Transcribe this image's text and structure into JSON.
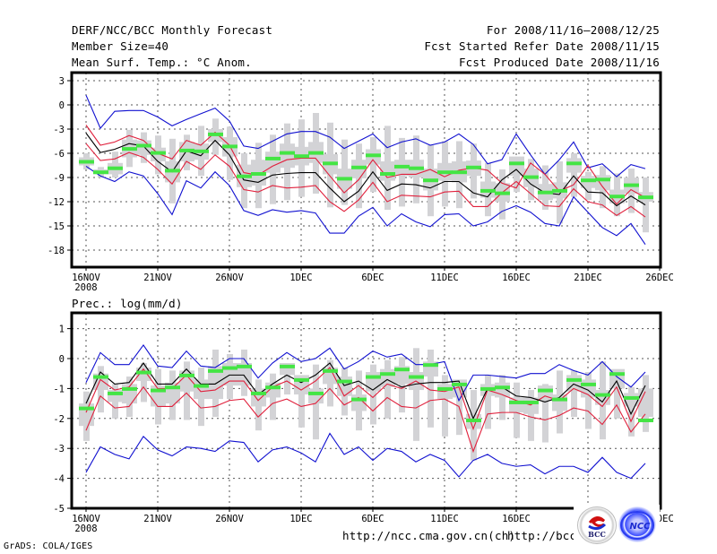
{
  "header": {
    "title": "DERF/NCC/BCC Monthly Forecast",
    "member_size": "Member Size=40",
    "variable": "Mean Surf. Temp.: °C Anom.",
    "period": "For 2008/11/16—2008/12/25",
    "start_date": "Fcst Started Refer Date 2008/11/15",
    "produced_date": "Fcst Produced Date 2008/11/16"
  },
  "footer": {
    "grads": "GrADS: COLA/IGES",
    "url_ncc": "http://ncc.cma.gov.cn(ch)",
    "url_bcc": "http://bcc.c",
    "logos": [
      "BCC",
      "NCC"
    ]
  },
  "colors": {
    "box": "#d3d3d6",
    "median": "#44e544",
    "mean": "#000000",
    "spread": "#e0203c",
    "extreme": "#1010d0",
    "grid": "#555555"
  },
  "chart_data": [
    {
      "type": "line",
      "title": "Mean Surf. Temp.: °C Anom.",
      "xlabel": "",
      "ylabel": "",
      "x_tick_labels": [
        "16NOV",
        "21NOV",
        "26NOV",
        "1DEC",
        "6DEC",
        "11DEC",
        "16DEC",
        "21DEC",
        "26DEC"
      ],
      "x_sub_label": "2008",
      "x_tick_days": [
        0,
        5,
        10,
        15,
        20,
        25,
        30,
        35,
        40
      ],
      "xlim": [
        -1,
        40
      ],
      "y_ticks": [
        3,
        0,
        -3,
        -6,
        -9,
        -12,
        -15,
        -18
      ],
      "ylim": [
        -20.5,
        4
      ],
      "grid": true,
      "n_days": 40,
      "series": [
        {
          "name": "max",
          "color_key": "extreme",
          "values": [
            1.2,
            -2.9,
            -0.8,
            -0.7,
            -0.7,
            -1.5,
            -2.6,
            -1.8,
            -1.1,
            -0.4,
            -2.0,
            -5.1,
            -5.4,
            -4.5,
            -3.6,
            -3.3,
            -3.3,
            -4.0,
            -5.4,
            -4.5,
            -3.6,
            -5.3,
            -4.6,
            -4.2,
            -5.0,
            -4.6,
            -3.6,
            -4.9,
            -7.3,
            -6.8,
            -3.6,
            -6.2,
            -8.6,
            -6.8,
            -4.6,
            -7.8,
            -7.3,
            -8.9,
            -7.4,
            -7.9
          ]
        },
        {
          "name": "upper",
          "color_key": "spread",
          "values": [
            -2.5,
            -5.0,
            -4.6,
            -3.8,
            -4.4,
            -6.0,
            -6.7,
            -4.4,
            -5.0,
            -3.4,
            -5.0,
            -8.4,
            -8.7,
            -7.6,
            -6.8,
            -6.6,
            -6.6,
            -8.8,
            -10.9,
            -9.3,
            -6.8,
            -9.0,
            -8.6,
            -8.6,
            -8.0,
            -8.9,
            -8.1,
            -7.8,
            -8.1,
            -9.7,
            -10.3,
            -7.2,
            -8.6,
            -10.7,
            -9.9,
            -7.5,
            -10.1,
            -12.3,
            -10.5,
            -11.5
          ]
        },
        {
          "name": "mean",
          "color_key": "mean",
          "values": [
            -3.5,
            -5.9,
            -5.5,
            -4.8,
            -5.1,
            -7.0,
            -8.3,
            -5.7,
            -6.3,
            -4.4,
            -6.2,
            -9.3,
            -9.6,
            -8.7,
            -8.5,
            -8.4,
            -8.4,
            -10.3,
            -12.0,
            -10.7,
            -8.3,
            -10.6,
            -9.8,
            -9.9,
            -10.3,
            -9.5,
            -9.5,
            -10.9,
            -11.4,
            -9.3,
            -8.0,
            -9.8,
            -10.9,
            -11.1,
            -8.8,
            -10.8,
            -10.9,
            -12.5,
            -11.3,
            -12.4
          ]
        },
        {
          "name": "lower",
          "color_key": "spread",
          "values": [
            -4.8,
            -6.9,
            -6.7,
            -5.9,
            -6.5,
            -8.0,
            -9.8,
            -7.0,
            -8.0,
            -6.2,
            -7.6,
            -10.5,
            -10.8,
            -10.0,
            -10.3,
            -10.2,
            -10.0,
            -12.0,
            -13.2,
            -11.8,
            -9.6,
            -12.0,
            -11.2,
            -11.3,
            -11.4,
            -10.8,
            -10.7,
            -12.6,
            -12.6,
            -10.9,
            -9.5,
            -11.0,
            -12.5,
            -12.6,
            -10.4,
            -12.0,
            -12.4,
            -13.7,
            -12.6,
            -13.9
          ]
        },
        {
          "name": "min",
          "color_key": "extreme",
          "values": [
            -7.6,
            -8.8,
            -9.5,
            -8.3,
            -8.8,
            -11.0,
            -13.6,
            -9.4,
            -10.3,
            -8.3,
            -10.0,
            -13.1,
            -13.7,
            -13.0,
            -13.3,
            -13.1,
            -13.4,
            -15.9,
            -15.9,
            -13.8,
            -12.7,
            -15.0,
            -13.5,
            -14.5,
            -15.1,
            -13.6,
            -13.5,
            -15.0,
            -14.5,
            -13.2,
            -12.5,
            -13.3,
            -14.7,
            -15.0,
            -11.4,
            -13.3,
            -15.2,
            -16.2,
            -14.7,
            -17.3
          ]
        },
        {
          "name": "median",
          "color_key": "median",
          "values": [
            -7.0,
            -8.3,
            -7.8,
            -5.4,
            -5.0,
            -5.9,
            -8.1,
            -5.6,
            -5.7,
            -3.6,
            -5.1,
            -8.8,
            -8.5,
            -6.6,
            -5.9,
            -6.3,
            -5.9,
            -7.2,
            -9.1,
            -7.7,
            -6.2,
            -8.5,
            -7.6,
            -7.8,
            -9.3,
            -8.3,
            -8.3,
            -7.7,
            -10.6,
            -10.9,
            -7.2,
            -8.9,
            -10.8,
            -10.6,
            -7.2,
            -9.3,
            -9.2,
            -11.3,
            -9.9,
            -11.4
          ]
        },
        {
          "name": "box_outer_top",
          "color_key": "box",
          "values": [
            -6.0,
            -7.7,
            -5.8,
            -3.1,
            -3.4,
            -3.8,
            -4.2,
            -3.7,
            -2.6,
            -1.7,
            -2.7,
            -6.0,
            -4.7,
            -3.7,
            -2.3,
            -1.8,
            -1.0,
            -2.2,
            -4.3,
            -4.8,
            -4.0,
            -2.6,
            -4.1,
            -3.8,
            -5.0,
            -4.5,
            -4.5,
            -4.8,
            -7.2,
            -8.0,
            -6.5,
            -6.7,
            -7.5,
            -7.0,
            -6.0,
            -8.3,
            -7.6,
            -8.5,
            -7.9,
            -9.0
          ]
        },
        {
          "name": "box_inner_top",
          "color_key": "box",
          "values": [
            -6.5,
            -8.0,
            -7.2,
            -4.3,
            -4.4,
            -5.3,
            -7.0,
            -4.6,
            -4.8,
            -3.0,
            -4.0,
            -7.4,
            -6.8,
            -5.8,
            -4.8,
            -5.2,
            -4.6,
            -6.1,
            -7.9,
            -6.8,
            -5.5,
            -7.0,
            -6.8,
            -6.8,
            -7.9,
            -7.2,
            -7.0,
            -6.9,
            -9.5,
            -9.7,
            -6.4,
            -7.9,
            -9.8,
            -9.6,
            -6.6,
            -8.8,
            -8.7,
            -10.5,
            -9.0,
            -10.8
          ]
        },
        {
          "name": "box_inner_bottom",
          "color_key": "box",
          "values": [
            -7.5,
            -8.6,
            -8.6,
            -6.5,
            -6.2,
            -7.0,
            -9.6,
            -7.0,
            -6.8,
            -4.6,
            -6.4,
            -10.2,
            -10.0,
            -8.4,
            -7.8,
            -7.5,
            -7.2,
            -8.6,
            -10.4,
            -9.1,
            -7.4,
            -9.4,
            -8.8,
            -9.0,
            -10.6,
            -9.4,
            -9.6,
            -8.8,
            -11.5,
            -12.0,
            -8.8,
            -10.2,
            -11.8,
            -11.6,
            -8.4,
            -10.3,
            -10.6,
            -12.2,
            -11.0,
            -12.0
          ]
        },
        {
          "name": "box_outer_bottom",
          "color_key": "box",
          "values": [
            -8.0,
            -9.0,
            -9.0,
            -7.7,
            -7.2,
            -8.6,
            -12.2,
            -8.1,
            -8.8,
            -6.2,
            -9.3,
            -12.8,
            -12.8,
            -12.3,
            -11.8,
            -11.4,
            -11.0,
            -12.7,
            -12.4,
            -12.8,
            -10.8,
            -13.0,
            -12.6,
            -12.2,
            -13.8,
            -12.6,
            -12.8,
            -11.6,
            -13.8,
            -14.2,
            -10.8,
            -11.8,
            -13.0,
            -14.7,
            -11.4,
            -11.8,
            -12.8,
            -13.8,
            -13.4,
            -15.8
          ]
        }
      ]
    },
    {
      "type": "line",
      "title": "Prec.: log(mm/d)",
      "xlabel": "",
      "ylabel": "",
      "x_tick_labels": [
        "16NOV",
        "21NOV",
        "26NOV",
        "1DEC",
        "6DEC",
        "11DEC",
        "16DEC",
        "21DEC",
        "26DEC"
      ],
      "x_sub_label": "2008",
      "x_tick_days": [
        0,
        5,
        10,
        15,
        20,
        25,
        30,
        35,
        40
      ],
      "xlim": [
        -1,
        40
      ],
      "y_ticks": [
        1,
        0,
        -1,
        -2,
        -3,
        -4,
        -5
      ],
      "ylim": [
        -5,
        1.5
      ],
      "grid": true,
      "n_days": 40,
      "series": [
        {
          "name": "max",
          "color_key": "extreme",
          "values": [
            -0.8,
            0.2,
            -0.2,
            -0.2,
            0.45,
            -0.25,
            -0.3,
            0.25,
            -0.25,
            -0.3,
            0.0,
            0.0,
            -0.65,
            -0.15,
            0.2,
            -0.1,
            0.0,
            0.35,
            -0.35,
            -0.1,
            0.25,
            0.05,
            0.15,
            -0.2,
            -0.2,
            -0.1,
            -1.4,
            -0.55,
            -0.55,
            -0.6,
            -0.65,
            -0.5,
            -0.5,
            -0.2,
            -0.4,
            -0.55,
            -0.1,
            -0.6,
            -0.95,
            -0.45
          ]
        },
        {
          "name": "mean",
          "color_key": "mean",
          "values": [
            -1.5,
            -0.45,
            -0.85,
            -0.8,
            -0.15,
            -0.85,
            -0.85,
            -0.35,
            -0.85,
            -0.85,
            -0.55,
            -0.55,
            -1.2,
            -0.85,
            -0.55,
            -0.8,
            -0.55,
            -0.15,
            -0.9,
            -0.75,
            -1.05,
            -0.7,
            -0.95,
            -0.85,
            -0.8,
            -0.8,
            -0.75,
            -2.0,
            -1.0,
            -0.95,
            -1.25,
            -1.3,
            -1.45,
            -1.3,
            -0.85,
            -1.05,
            -1.45,
            -0.75,
            -1.85,
            -0.9
          ]
        },
        {
          "name": "upper",
          "color_key": "spread",
          "values": [
            -1.8,
            -0.7,
            -1.05,
            -0.95,
            -0.35,
            -1.0,
            -1.0,
            -0.55,
            -1.1,
            -1.05,
            -0.75,
            -0.75,
            -1.4,
            -0.95,
            -0.75,
            -1.05,
            -0.75,
            -0.3,
            -1.25,
            -0.9,
            -1.3,
            -0.85,
            -1.0,
            -0.75,
            -1.05,
            -1.1,
            -0.95,
            -2.35,
            -1.05,
            -1.2,
            -1.4,
            -1.55,
            -1.25,
            -1.4,
            -1.0,
            -1.2,
            -1.6,
            -0.95,
            -2.1,
            -1.1
          ]
        },
        {
          "name": "lower",
          "color_key": "spread",
          "values": [
            -2.4,
            -1.25,
            -1.65,
            -1.6,
            -0.95,
            -1.6,
            -1.6,
            -1.15,
            -1.65,
            -1.6,
            -1.4,
            -1.35,
            -1.95,
            -1.5,
            -1.35,
            -1.6,
            -1.5,
            -1.0,
            -1.55,
            -1.3,
            -1.75,
            -1.3,
            -1.6,
            -1.65,
            -1.4,
            -1.35,
            -1.6,
            -3.1,
            -1.85,
            -1.8,
            -1.8,
            -1.95,
            -2.05,
            -1.9,
            -1.65,
            -1.75,
            -2.2,
            -1.55,
            -2.45,
            -1.85
          ]
        },
        {
          "name": "min",
          "color_key": "extreme",
          "values": [
            -3.8,
            -2.95,
            -3.2,
            -3.35,
            -2.6,
            -3.05,
            -3.25,
            -2.95,
            -3.0,
            -3.1,
            -2.75,
            -2.8,
            -3.45,
            -3.05,
            -2.95,
            -3.15,
            -3.45,
            -2.5,
            -3.2,
            -2.95,
            -3.4,
            -3.0,
            -3.1,
            -3.45,
            -3.2,
            -3.4,
            -3.95,
            -3.4,
            -3.2,
            -3.5,
            -3.6,
            -3.55,
            -3.85,
            -3.6,
            -3.6,
            -3.8,
            -3.3,
            -3.8,
            -4.0,
            -3.5
          ]
        },
        {
          "name": "median",
          "color_key": "median",
          "values": [
            -1.65,
            -0.6,
            -1.15,
            -1.0,
            -0.45,
            -1.05,
            -0.95,
            -0.55,
            -0.9,
            -0.4,
            -0.3,
            -0.25,
            -1.15,
            -0.95,
            -0.25,
            -0.7,
            -1.15,
            -0.4,
            -0.75,
            -1.35,
            -0.6,
            -0.5,
            -0.35,
            -0.6,
            -0.2,
            -1.0,
            -0.85,
            -2.05,
            -1.0,
            -0.95,
            -1.45,
            -1.45,
            -1.05,
            -1.35,
            -0.7,
            -0.85,
            -1.2,
            -0.5,
            -1.3,
            -2.05
          ]
        },
        {
          "name": "box_outer_top",
          "color_key": "box",
          "values": [
            -1.1,
            -0.25,
            -0.85,
            -0.6,
            -0.15,
            -0.35,
            -0.4,
            -0.1,
            -0.3,
            0.3,
            0.15,
            0.3,
            -0.7,
            -0.5,
            -0.35,
            -0.7,
            -0.2,
            -0.05,
            -0.3,
            -0.4,
            -0.2,
            -0.05,
            0.05,
            0.35,
            0.3,
            -0.55,
            -1.1,
            -1.05,
            -0.55,
            -0.55,
            -0.8,
            -1.05,
            -0.85,
            -0.4,
            -0.4,
            -0.45,
            -0.1,
            -0.7,
            -0.95,
            -0.55
          ]
        },
        {
          "name": "box_inner_top",
          "color_key": "box",
          "values": [
            -1.5,
            -0.5,
            -1.05,
            -0.85,
            -0.3,
            -0.9,
            -0.8,
            -0.4,
            -0.7,
            -0.25,
            -0.15,
            -0.15,
            -1.0,
            -0.8,
            -0.15,
            -0.55,
            -1.0,
            -0.3,
            -0.6,
            -1.2,
            -0.45,
            -0.35,
            -0.25,
            -0.45,
            -0.1,
            -0.85,
            -0.7,
            -1.85,
            -0.85,
            -0.8,
            -1.3,
            -1.3,
            -0.9,
            -1.2,
            -0.55,
            -0.7,
            -1.05,
            -0.35,
            -1.15,
            -1.0
          ]
        },
        {
          "name": "box_inner_bottom",
          "color_key": "box",
          "values": [
            -2.25,
            -1.05,
            -1.45,
            -1.5,
            -0.75,
            -1.6,
            -1.5,
            -1.1,
            -1.35,
            -1.35,
            -0.9,
            -0.9,
            -1.6,
            -1.3,
            -0.55,
            -1.2,
            -1.5,
            -0.85,
            -1.25,
            -1.75,
            -1.1,
            -0.95,
            -0.85,
            -1.05,
            -0.6,
            -1.35,
            -1.3,
            -2.35,
            -1.25,
            -1.3,
            -1.8,
            -1.85,
            -1.4,
            -1.75,
            -1.1,
            -1.3,
            -1.55,
            -1.0,
            -1.6,
            -1.95
          ]
        },
        {
          "name": "box_outer_bottom",
          "color_key": "box",
          "values": [
            -2.75,
            -1.8,
            -2.0,
            -1.95,
            -1.45,
            -2.2,
            -2.05,
            -2.05,
            -2.25,
            -1.95,
            -1.35,
            -1.25,
            -2.4,
            -2.05,
            -1.2,
            -2.3,
            -2.7,
            -1.6,
            -1.9,
            -2.4,
            -2.2,
            -2.0,
            -1.8,
            -2.75,
            -2.3,
            -2.6,
            -2.55,
            -3.4,
            -2.35,
            -2.05,
            -2.65,
            -2.75,
            -2.8,
            -2.5,
            -1.95,
            -2.35,
            -2.7,
            -2.0,
            -2.6,
            -2.45
          ]
        }
      ]
    }
  ]
}
